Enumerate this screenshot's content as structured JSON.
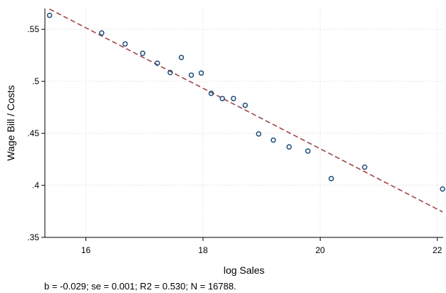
{
  "chart_data": {
    "type": "scatter",
    "xlabel": "log Sales",
    "ylabel": "Wage Bill / Costs",
    "xlim": [
      15.3,
      22.1
    ],
    "ylim": [
      0.35,
      0.57
    ],
    "x_ticks": [
      16,
      18,
      20,
      22
    ],
    "x_tick_labels": [
      "16",
      "18",
      "20",
      "22"
    ],
    "y_ticks": [
      0.35,
      0.4,
      0.45,
      0.5,
      0.55
    ],
    "y_tick_labels": [
      ".35",
      ".4",
      ".45",
      ".5",
      ".55"
    ],
    "grid": true,
    "point_color": "#1f4e79",
    "fit_line_color": "#a04646",
    "fit_line_style": "dashed",
    "points": [
      {
        "x": 15.38,
        "y": 0.5635
      },
      {
        "x": 16.27,
        "y": 0.5465
      },
      {
        "x": 16.67,
        "y": 0.536
      },
      {
        "x": 16.97,
        "y": 0.527
      },
      {
        "x": 17.22,
        "y": 0.5175
      },
      {
        "x": 17.44,
        "y": 0.5085
      },
      {
        "x": 17.63,
        "y": 0.523
      },
      {
        "x": 17.8,
        "y": 0.506
      },
      {
        "x": 17.97,
        "y": 0.508
      },
      {
        "x": 18.14,
        "y": 0.4885
      },
      {
        "x": 18.33,
        "y": 0.4835
      },
      {
        "x": 18.52,
        "y": 0.4835
      },
      {
        "x": 18.72,
        "y": 0.477
      },
      {
        "x": 18.95,
        "y": 0.4495
      },
      {
        "x": 19.2,
        "y": 0.4435
      },
      {
        "x": 19.47,
        "y": 0.437
      },
      {
        "x": 19.79,
        "y": 0.433
      },
      {
        "x": 20.19,
        "y": 0.4065
      },
      {
        "x": 20.76,
        "y": 0.4175
      },
      {
        "x": 22.09,
        "y": 0.3965
      }
    ],
    "fit_line": {
      "x": [
        15.38,
        22.09
      ],
      "y": [
        0.5695,
        0.3745
      ]
    },
    "note": "b = -0.029; se = 0.001; R2 = 0.530; N = 16788."
  }
}
